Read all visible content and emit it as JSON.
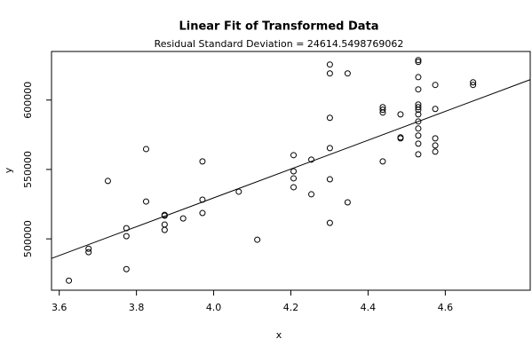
{
  "chart_data": {
    "type": "scatter",
    "title": "Linear Fit of Transformed Data",
    "subtitle": "Residual Standard Deviation =  24614.5498769062",
    "x_label": "x",
    "y_label": "y",
    "xlim": [
      3.58,
      4.82
    ],
    "ylim": [
      463000,
      635000
    ],
    "xticks": [
      3.6,
      3.8,
      {
        "value": 4,
        "label": "4.0"
      },
      4.2,
      4.4,
      4.6
    ],
    "yticks": [
      500000,
      550000,
      600000
    ],
    "color": "#000000",
    "x": [
      3.625,
      3.676,
      3.676,
      3.726,
      3.774,
      3.774,
      3.774,
      3.825,
      3.825,
      3.873,
      3.873,
      3.873,
      3.873,
      3.921,
      3.971,
      3.971,
      3.971,
      4.065,
      4.113,
      4.207,
      4.207,
      4.207,
      4.207,
      4.253,
      4.253,
      4.301,
      4.301,
      4.301,
      4.301,
      4.301,
      4.301,
      4.347,
      4.347,
      4.438,
      4.438,
      4.438,
      4.438,
      4.484,
      4.484,
      4.484,
      4.53,
      4.53,
      4.53,
      4.53,
      4.53,
      4.53,
      4.53,
      4.53,
      4.53,
      4.53,
      4.53,
      4.53,
      4.53,
      4.574,
      4.574,
      4.574,
      4.574,
      4.574,
      4.672,
      4.672
    ],
    "values": [
      469900,
      492900,
      490400,
      541700,
      507700,
      501900,
      478200,
      564700,
      526900,
      517300,
      516700,
      510300,
      506400,
      514700,
      555800,
      528200,
      518600,
      534000,
      499400,
      560300,
      548700,
      543600,
      537200,
      557100,
      532100,
      625600,
      619200,
      587200,
      565400,
      542900,
      511500,
      619200,
      526300,
      594900,
      593000,
      591000,
      555800,
      589700,
      573100,
      572400,
      628800,
      627500,
      616500,
      607700,
      596800,
      594900,
      593000,
      589700,
      584600,
      579500,
      574400,
      568600,
      560900,
      610900,
      593600,
      572400,
      567300,
      562800,
      612800,
      610900
    ],
    "fit": {
      "x": [
        3.58,
        4.82
      ],
      "y": [
        485900,
        614700
      ]
    }
  }
}
